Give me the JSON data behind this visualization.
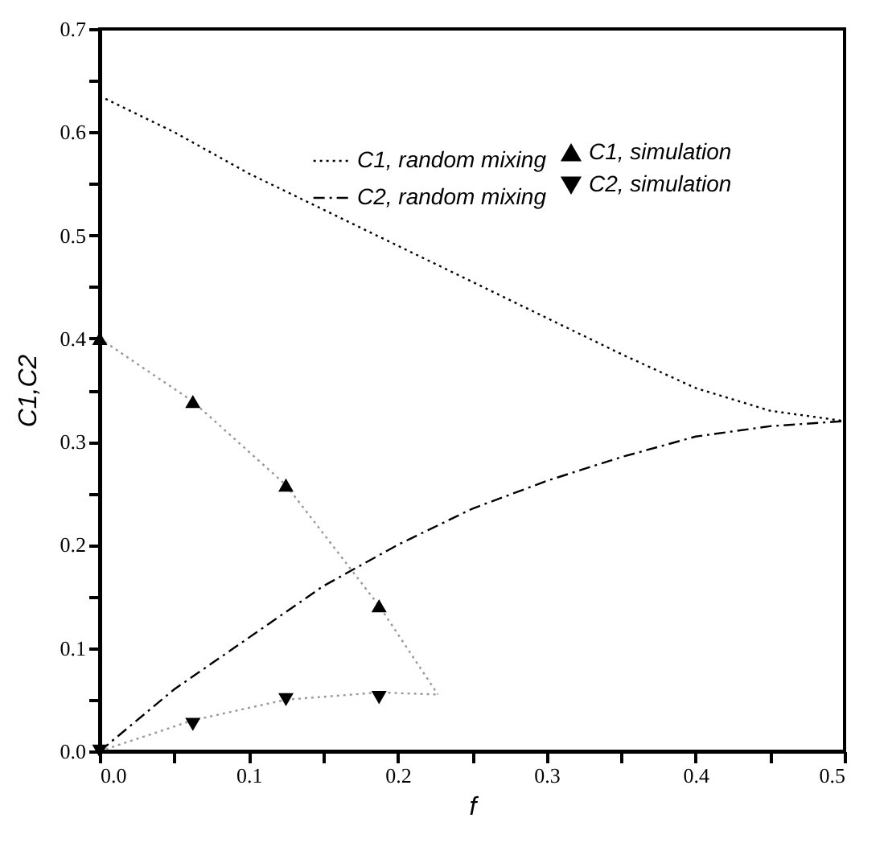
{
  "chart_data": {
    "type": "line",
    "xlabel": "f",
    "ylabel": "C1,C2",
    "xlim": [
      0,
      0.5
    ],
    "ylim": [
      0,
      0.7
    ],
    "xticks": [
      {
        "value": 0,
        "label": "0.0"
      },
      {
        "value": 0.05,
        "label": null
      },
      {
        "value": 0.1,
        "label": "0.1"
      },
      {
        "value": 0.15,
        "label": null
      },
      {
        "value": 0.2,
        "label": "0.2"
      },
      {
        "value": 0.25,
        "label": null
      },
      {
        "value": 0.3,
        "label": "0.3"
      },
      {
        "value": 0.35,
        "label": null
      },
      {
        "value": 0.4,
        "label": "0.4"
      },
      {
        "value": 0.45,
        "label": null
      },
      {
        "value": 0.5,
        "label": "0.5"
      }
    ],
    "yticks": [
      {
        "value": 0,
        "label": "0.0"
      },
      {
        "value": 0.05,
        "label": null
      },
      {
        "value": 0.1,
        "label": "0.1"
      },
      {
        "value": 0.15,
        "label": null
      },
      {
        "value": 0.2,
        "label": "0.2"
      },
      {
        "value": 0.25,
        "label": null
      },
      {
        "value": 0.3,
        "label": "0.3"
      },
      {
        "value": 0.35,
        "label": null
      },
      {
        "value": 0.4,
        "label": "0.4"
      },
      {
        "value": 0.45,
        "label": null
      },
      {
        "value": 0.5,
        "label": "0.5"
      },
      {
        "value": 0.55,
        "label": null
      },
      {
        "value": 0.6,
        "label": "0.6"
      },
      {
        "value": 0.65,
        "label": null
      },
      {
        "value": 0.7,
        "label": "0.7"
      }
    ],
    "legend": "top right",
    "grid": false,
    "series": [
      {
        "name": "C1, simulation",
        "type": "scatter",
        "marker": "triangle",
        "color": "#000000",
        "x": [
          0,
          0.0625,
          0.125,
          0.1875
        ],
        "values": [
          0.4,
          0.339,
          0.258,
          0.141
        ]
      },
      {
        "name": "C2, simulation",
        "type": "scatter",
        "marker": "triangle-down",
        "color": "#000000",
        "x": [
          0,
          0.0625,
          0.125,
          0.1875
        ],
        "values": [
          0,
          0.026,
          0.05,
          0.052
        ]
      },
      {
        "name": "C1, random mixing",
        "type": "line",
        "line_style": "dotted",
        "color": "#000000",
        "x": [
          0,
          0.05,
          0.1,
          0.15,
          0.2,
          0.25,
          0.3,
          0.35,
          0.4,
          0.45,
          0.5
        ],
        "values": [
          0.635,
          0.6,
          0.56,
          0.525,
          0.49,
          0.455,
          0.42,
          0.385,
          0.352,
          0.33,
          0.32
        ]
      },
      {
        "name": "C2, random mixing",
        "type": "line",
        "line_style": "dashdot",
        "color": "#000000",
        "x": [
          0,
          0.05,
          0.1,
          0.15,
          0.2,
          0.25,
          0.3,
          0.35,
          0.4,
          0.45,
          0.5
        ],
        "values": [
          0,
          0.06,
          0.11,
          0.16,
          0.2,
          0.235,
          0.262,
          0.285,
          0.305,
          0.315,
          0.32
        ]
      },
      {
        "type": "line",
        "line_style": "dotted",
        "color": "#999999",
        "x": [
          0,
          0.0625,
          0.125,
          0.1875,
          0.227
        ],
        "values": [
          0.4,
          0.339,
          0.258,
          0.141,
          0.055
        ]
      },
      {
        "type": "line",
        "line_style": "dotted",
        "color": "#999999",
        "x": [
          0,
          0.0625,
          0.125,
          0.1875,
          0.227
        ],
        "values": [
          0,
          0.03,
          0.05,
          0.057,
          0.055
        ]
      }
    ]
  }
}
